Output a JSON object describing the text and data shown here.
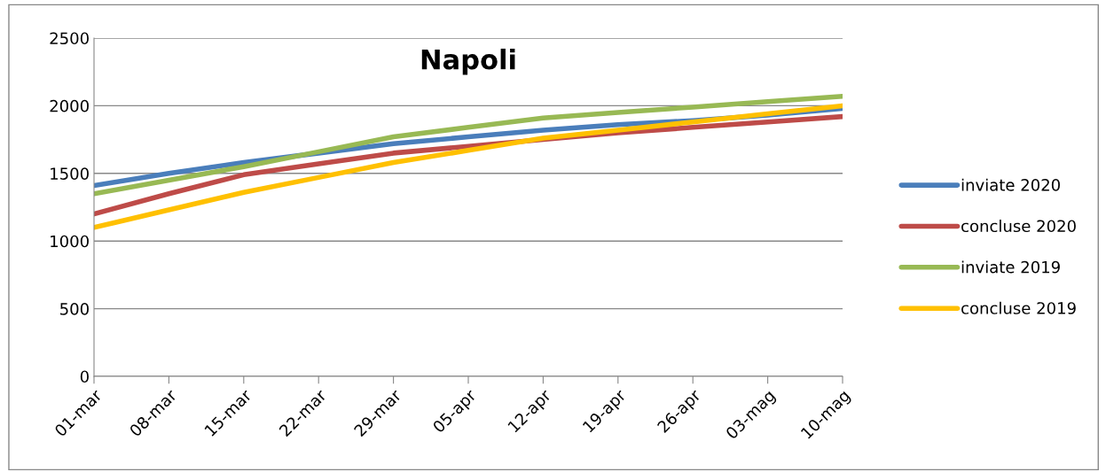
{
  "chart_data": {
    "type": "line",
    "title": "Napoli",
    "categories": [
      "01-mar",
      "08-mar",
      "15-mar",
      "22-mar",
      "29-mar",
      "05-apr",
      "12-apr",
      "19-apr",
      "26-apr",
      "03-mag",
      "10-mag"
    ],
    "series": [
      {
        "name": "inviate 2020",
        "color": "#4a7ebb",
        "values": [
          1410,
          1500,
          1580,
          1650,
          1720,
          1770,
          1820,
          1860,
          1890,
          1930,
          1980
        ]
      },
      {
        "name": "concluse 2020",
        "color": "#be4b48",
        "values": [
          1200,
          1350,
          1490,
          1570,
          1650,
          1700,
          1750,
          1800,
          1840,
          1880,
          1920
        ]
      },
      {
        "name": "inviate 2019",
        "color": "#98b954",
        "values": [
          1350,
          1450,
          1550,
          1660,
          1770,
          1840,
          1910,
          1950,
          1990,
          2030,
          2070
        ]
      },
      {
        "name": "concluse 2019",
        "color": "#ffc000",
        "values": [
          1100,
          1230,
          1360,
          1470,
          1580,
          1670,
          1760,
          1820,
          1880,
          1940,
          2000
        ]
      }
    ],
    "ylim": [
      0,
      2500
    ],
    "yticks": [
      0,
      500,
      1000,
      1500,
      2000,
      2500
    ],
    "grid": "y",
    "legend": "right",
    "marker": "none",
    "line_style": "solid"
  }
}
